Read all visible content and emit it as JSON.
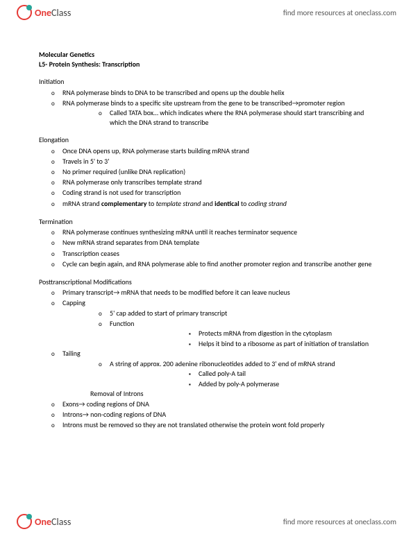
{
  "brand": {
    "part1": "One",
    "part2": "Class"
  },
  "header_link": "find more resources at oneclass.com",
  "footer_link": "find more resources at oneclass.com",
  "doc": {
    "title1": "Molecular Genetics",
    "title2": "L5- Protein Synthesis: Transcription",
    "sections": [
      {
        "heading": "Initiation",
        "items": [
          {
            "text": "RNA polymerase binds to DNA to be transcribed and opens up the double helix"
          },
          {
            "text": "RNA polymerase binds to a specific site upstream from the gene to be transcribed→promoter region",
            "sub": [
              {
                "text": "Called TATA box… which indicates where the RNA polymerase should start transcribing and which the DNA strand to transcribe"
              }
            ]
          }
        ]
      },
      {
        "heading": "Elongation",
        "items": [
          {
            "text": "Once DNA opens up, RNA polymerase starts building mRNA strand"
          },
          {
            "text": "Travels in 5' to 3'"
          },
          {
            "text": "No primer required (unlike DNA replication)"
          },
          {
            "text": "RNA polymerase only transcribes template strand"
          },
          {
            "text": "Coding strand is not used for transcription"
          },
          {
            "html": "mRNA strand <b>complementary</b> to <i>template strand</i> and <b>identical</b> to <i>coding strand</i>"
          }
        ]
      },
      {
        "heading": "Termination",
        "items": [
          {
            "text": "RNA polymerase continues synthesizing mRNA until it reaches terminator sequence"
          },
          {
            "text": "New mRNA strand separates from DNA template"
          },
          {
            "text": "Transcription ceases"
          },
          {
            "text": "Cycle can begin again, and RNA polymerase able to find another promoter region and transcribe another gene"
          }
        ]
      },
      {
        "heading": "Posttranscriptional Modifications",
        "items": [
          {
            "text": "Primary transcript→ mRNA that needs to be modified before it can leave nucleus"
          },
          {
            "text": "Capping",
            "sub": [
              {
                "text": "5' cap added to start of primary transcript"
              },
              {
                "text": "Function",
                "sub3": [
                  {
                    "text": "Protects mRNA from digestion in the cytoplasm"
                  },
                  {
                    "text": "Helps it bind to a ribosome as part of initiation of translation"
                  }
                ]
              }
            ]
          },
          {
            "text": "Tailing",
            "sub": [
              {
                "text": "A string of approx. 200 adenine ribonucleotides added to 3' end of mRNA strand",
                "sub3": [
                  {
                    "text": "Called poly-A tail"
                  },
                  {
                    "text": "Added by poly-A polymerase"
                  }
                ]
              }
            ],
            "trailing": "Removal of Introns"
          },
          {
            "text": "Exons→ coding regions of DNA"
          },
          {
            "text": "Introns→ non-coding regions of DNA"
          },
          {
            "text": "Introns must be removed so they are not translated otherwise the protein wont fold properly"
          }
        ]
      }
    ]
  }
}
